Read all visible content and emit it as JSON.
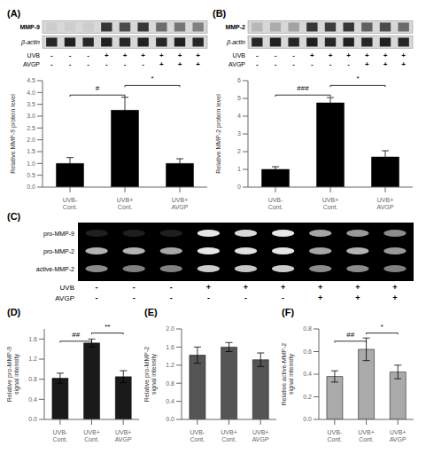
{
  "chart_data": [
    {
      "type": "bar",
      "title": "(A)",
      "blot": {
        "rows": [
          {
            "label": "MMP-9",
            "intensities": [
              0.05,
              0.05,
              0.05,
              0.75,
              0.65,
              0.75,
              0.5,
              0.45,
              0.4
            ]
          },
          {
            "label": "β-actin",
            "intensities": [
              0.82,
              0.85,
              0.82,
              0.85,
              0.82,
              0.85,
              0.82,
              0.85,
              0.82
            ]
          }
        ],
        "conditions": [
          {
            "label": "UVB",
            "values": [
              "-",
              "-",
              "-",
              "+",
              "+",
              "+",
              "+",
              "+",
              "+"
            ]
          },
          {
            "label": "AVGP",
            "values": [
              "-",
              "-",
              "-",
              "-",
              "-",
              "-",
              "+",
              "+",
              "+"
            ]
          }
        ]
      },
      "categories": [
        "UVB- Cont.",
        "UVB+ Cont.",
        "UVB+ AVGP"
      ],
      "values": [
        1.0,
        3.25,
        1.0
      ],
      "errors": [
        0.25,
        0.55,
        0.2
      ],
      "color": "#000000",
      "ylabel": "Relative MMP-9 protein level",
      "ylim": [
        0,
        4.5
      ],
      "yticks": [
        {
          "value": 0,
          "label": "0.0"
        },
        0.5,
        {
          "value": 1.0,
          "label": "1.0"
        },
        1.5,
        {
          "value": 2.0,
          "label": "2.0"
        },
        2.5,
        {
          "value": 3.0,
          "label": "3.0"
        },
        3.5,
        {
          "value": 4.0,
          "label": "4.0"
        },
        4.5
      ],
      "annotations": [
        {
          "text": "#",
          "between": [
            "UVB- Cont.",
            "UVB+ Cont."
          ]
        },
        {
          "text": "*",
          "between": [
            "UVB+ Cont.",
            "UVB+ AVGP"
          ]
        }
      ]
    },
    {
      "type": "bar",
      "title": "(B)",
      "blot": {
        "rows": [
          {
            "label": "MMP-2",
            "intensities": [
              0.15,
              0.2,
              0.25,
              0.75,
              0.72,
              0.75,
              0.55,
              0.65,
              0.5
            ]
          },
          {
            "label": "β-actin",
            "intensities": [
              0.82,
              0.85,
              0.82,
              0.85,
              0.82,
              0.85,
              0.82,
              0.85,
              0.82
            ]
          }
        ],
        "conditions": [
          {
            "label": "UVB",
            "values": [
              "-",
              "-",
              "-",
              "+",
              "+",
              "+",
              "+",
              "+",
              "+"
            ]
          },
          {
            "label": "AVGP",
            "values": [
              "-",
              "-",
              "-",
              "-",
              "-",
              "-",
              "+",
              "+",
              "+"
            ]
          }
        ]
      },
      "categories": [
        "UVB- Cont.",
        "UVB+ Cont.",
        "UVB+ AVGP"
      ],
      "values": [
        1.0,
        4.75,
        1.7
      ],
      "errors": [
        0.15,
        0.3,
        0.35
      ],
      "color": "#000000",
      "ylabel": "Relative MMP-2 protein level",
      "ylim": [
        0,
        6
      ],
      "yticks": [
        0,
        1,
        2,
        3,
        4,
        5,
        6
      ],
      "annotations": [
        {
          "text": "###",
          "between": [
            "UVB- Cont.",
            "UVB+ Cont."
          ]
        },
        {
          "text": "*",
          "between": [
            "UVB+ Cont.",
            "UVB+ AVGP"
          ]
        }
      ]
    },
    {
      "type": "gel",
      "title": "(C)",
      "rows": [
        {
          "label": "pro-MMP-9",
          "intensities": [
            0.12,
            0.12,
            0.12,
            0.9,
            0.85,
            0.9,
            0.65,
            0.6,
            0.55
          ]
        },
        {
          "label": "pro-MMP-2",
          "intensities": [
            0.7,
            0.7,
            0.65,
            0.9,
            0.88,
            0.9,
            0.65,
            0.7,
            0.6
          ]
        },
        {
          "label": "active-MMP-2",
          "intensities": [
            0.55,
            0.5,
            0.5,
            0.8,
            0.78,
            0.8,
            0.55,
            0.55,
            0.5
          ]
        }
      ],
      "conditions": [
        {
          "label": "UVB",
          "values": [
            "-",
            "-",
            "-",
            "+",
            "+",
            "+",
            "+",
            "+",
            "+"
          ]
        },
        {
          "label": "AVGP",
          "values": [
            "-",
            "-",
            "-",
            "-",
            "-",
            "-",
            "+",
            "+",
            "+"
          ]
        }
      ]
    },
    {
      "type": "bar",
      "title": "(D)",
      "categories": [
        "UVB- Cont.",
        "UVB+ Cont.",
        "UVB+ AVGP"
      ],
      "values": [
        0.82,
        1.52,
        0.85
      ],
      "errors": [
        0.1,
        0.08,
        0.12
      ],
      "color": "#1a1a1a",
      "ylabel": "Relative pro-MMP-9\nsignal intensity",
      "ylim": [
        0,
        1.8
      ],
      "yticks": [
        {
          "value": 0,
          "label": "0.0"
        },
        0.4,
        0.8,
        1.2,
        1.6
      ],
      "annotations": [
        {
          "text": "##",
          "between": [
            "UVB- Cont.",
            "UVB+ Cont."
          ]
        },
        {
          "text": "**",
          "between": [
            "UVB+ Cont.",
            "UVB+ AVGP"
          ]
        }
      ]
    },
    {
      "type": "bar",
      "title": "(E)",
      "categories": [
        "UVB- Cont.",
        "UVB+ Cont.",
        "UVB+ AVGP"
      ],
      "values": [
        1.42,
        1.6,
        1.32
      ],
      "errors": [
        0.18,
        0.1,
        0.15
      ],
      "color": "#555555",
      "ylabel": "Relative pro-MMP-2\nsignal intensity",
      "ylim": [
        0,
        2.0
      ],
      "yticks": [
        {
          "value": 0,
          "label": "0.0"
        },
        0.4,
        0.8,
        1.2,
        1.6,
        {
          "value": 2.0,
          "label": "2.0"
        }
      ]
    },
    {
      "type": "bar",
      "title": "(F)",
      "categories": [
        "UVB- Cont.",
        "UVB+ Cont.",
        "UVB+ AVGP"
      ],
      "values": [
        0.38,
        0.62,
        0.42
      ],
      "errors": [
        0.05,
        0.1,
        0.06
      ],
      "color": "#aaaaaa",
      "ylabel": "Relative active-MMP-2\nsignal intensity",
      "ylim": [
        0,
        0.8
      ],
      "yticks": [
        {
          "value": 0,
          "label": "0.0"
        },
        0.2,
        0.4,
        0.6,
        0.8
      ],
      "annotations": [
        {
          "text": "##",
          "between": [
            "UVB- Cont.",
            "UVB+ Cont."
          ]
        },
        {
          "text": "*",
          "between": [
            "UVB+ Cont.",
            "UVB+ AVGP"
          ]
        }
      ]
    }
  ]
}
